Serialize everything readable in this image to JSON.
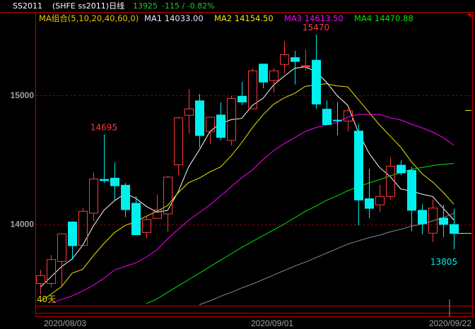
{
  "header": {
    "symbol": "SS2011",
    "name": "(SHFE ss2011)日线",
    "last_price": "13925",
    "change": "-115 / -0.82%"
  },
  "legend": {
    "ma_group": "MA组合(5,10,20,40,60,0)",
    "ma1": "MA1 14033.00",
    "ma2": "MA2 14154.50",
    "ma3": "MA3 14613.50",
    "ma4": "MA4 14470.88"
  },
  "colors": {
    "up": "#ff3b3b",
    "down": "#00f0f0",
    "ma1": "#ffffff",
    "ma2": "#e8e800",
    "ma3": "#ff00ff",
    "ma4": "#00e600",
    "ma5": "#8c8c8c",
    "border": "#c00000",
    "change_text": "#22cc22"
  },
  "chart_data": {
    "type": "candlestick",
    "period_label": "40天",
    "yticks": [
      "15000",
      "14000"
    ],
    "ytick_values": [
      15000,
      14000
    ],
    "ylim": [
      13370,
      15580
    ],
    "grid": "dashed at 14000 and 15000",
    "x_labels": [
      "2020/08/03",
      "2020/09/01",
      "2020/09/22"
    ],
    "x_label_index": [
      0,
      21,
      39
    ],
    "annotations": [
      {
        "text": "14695",
        "index": 6,
        "kind": "high"
      },
      {
        "text": "15470",
        "index": 26,
        "kind": "high"
      },
      {
        "text": "13805",
        "index": 39,
        "kind": "low"
      }
    ],
    "candles": [
      [
        13540,
        13645,
        13455,
        13600
      ],
      [
        13540,
        13760,
        13510,
        13725
      ],
      [
        13710,
        13925,
        13525,
        13925
      ],
      [
        14020,
        14020,
        13725,
        13830
      ],
      [
        13835,
        14125,
        13835,
        14100
      ],
      [
        14085,
        14400,
        14025,
        14350
      ],
      [
        14350,
        14695,
        14320,
        14335
      ],
      [
        14360,
        14480,
        14190,
        14295
      ],
      [
        14305,
        14320,
        14055,
        14110
      ],
      [
        14165,
        14215,
        13915,
        13915
      ],
      [
        13935,
        14060,
        13890,
        14035
      ],
      [
        14045,
        14230,
        14045,
        14110
      ],
      [
        14080,
        14375,
        13940,
        14365
      ],
      [
        14460,
        14835,
        14380,
        14825
      ],
      [
        14845,
        15050,
        14705,
        14895
      ],
      [
        14960,
        15010,
        14595,
        14685
      ],
      [
        14720,
        14830,
        14625,
        14830
      ],
      [
        14850,
        14945,
        14650,
        14670
      ],
      [
        14650,
        14995,
        14610,
        14975
      ],
      [
        14995,
        15105,
        14925,
        14945
      ],
      [
        14895,
        15210,
        14895,
        15190
      ],
      [
        15245,
        15245,
        15055,
        15100
      ],
      [
        15115,
        15210,
        15020,
        15190
      ],
      [
        15240,
        15420,
        15170,
        15315
      ],
      [
        15295,
        15345,
        15085,
        15260
      ],
      [
        15220,
        15355,
        15190,
        15230
      ],
      [
        15275,
        15470,
        14895,
        14930
      ],
      [
        14895,
        14960,
        14770,
        14770
      ],
      [
        14810,
        14945,
        14690,
        14800
      ],
      [
        14800,
        14890,
        14720,
        14880
      ],
      [
        14725,
        14775,
        13990,
        14185
      ],
      [
        14200,
        14430,
        14045,
        14120
      ],
      [
        14150,
        14305,
        14095,
        14215
      ],
      [
        14215,
        14520,
        14190,
        14450
      ],
      [
        14460,
        14495,
        14380,
        14395
      ],
      [
        14420,
        14445,
        13945,
        14105
      ],
      [
        14110,
        14155,
        13920,
        14000
      ],
      [
        13930,
        14190,
        13860,
        14125
      ],
      [
        14050,
        14150,
        13900,
        13995
      ],
      [
        14000,
        14120,
        13805,
        13925
      ]
    ],
    "candle_fields": [
      "open",
      "high",
      "low",
      "close"
    ],
    "series": [
      {
        "name": "MA1",
        "period": 5,
        "values": [
          13510,
          13590,
          13670,
          13730,
          13836,
          13986,
          14108,
          14182,
          14238,
          14201,
          14138,
          14093,
          14107,
          14250,
          14446,
          14576,
          14720,
          14781,
          14811,
          14821,
          14922,
          14976,
          15080,
          15148,
          15211,
          15219,
          15185,
          15101,
          14998,
          14922,
          14713,
          14551,
          14440,
          14370,
          14273,
          14257,
          14233,
          14215,
          14124,
          14033
        ]
      },
      {
        "name": "MA2",
        "period": 10,
        "values": [
          13400,
          13455,
          13515,
          13620,
          13650,
          13755,
          13850,
          13935,
          13990,
          14019,
          14062,
          14100,
          14144,
          14244,
          14323,
          14357,
          14406,
          14444,
          14530,
          14633,
          14749,
          14848,
          14930,
          14980,
          15016,
          15070,
          15080,
          15090,
          15073,
          15066,
          14966,
          14868,
          14770,
          14684,
          14597,
          14485,
          14392,
          14327,
          14247,
          14154.5
        ]
      },
      {
        "name": "MA3",
        "period": 20,
        "values": [
          null,
          13388,
          13415,
          13443,
          13481,
          13525,
          13580,
          13645,
          13672,
          13700,
          13745,
          13800,
          13885,
          13960,
          14030,
          14090,
          14150,
          14220,
          14290,
          14360,
          14420,
          14500,
          14570,
          14625,
          14672,
          14720,
          14750,
          14770,
          14790,
          14830,
          14852,
          14852,
          14852,
          14825,
          14809,
          14776,
          14748,
          14715,
          14672,
          14613.5
        ]
      },
      {
        "name": "MA4",
        "period": 40,
        "values": [
          null,
          null,
          null,
          null,
          null,
          null,
          null,
          null,
          null,
          null,
          13383,
          13420,
          13470,
          13520,
          13570,
          13620,
          13670,
          13720,
          13770,
          13820,
          13865,
          13910,
          13955,
          14000,
          14050,
          14100,
          14140,
          14185,
          14220,
          14260,
          14290,
          14320,
          14345,
          14375,
          14400,
          14425,
          14440,
          14455,
          14465,
          14470.88
        ]
      },
      {
        "period": 60,
        "values": [
          null,
          null,
          null,
          null,
          null,
          null,
          null,
          null,
          null,
          null,
          null,
          null,
          null,
          null,
          null,
          13375,
          13405,
          13440,
          13470,
          13505,
          13535,
          13570,
          13605,
          13640,
          13675,
          13705,
          13740,
          13775,
          13810,
          13845,
          13870,
          13895,
          13915,
          13940,
          13960,
          13985,
          14000,
          14025,
          14050,
          14085
        ]
      }
    ]
  }
}
